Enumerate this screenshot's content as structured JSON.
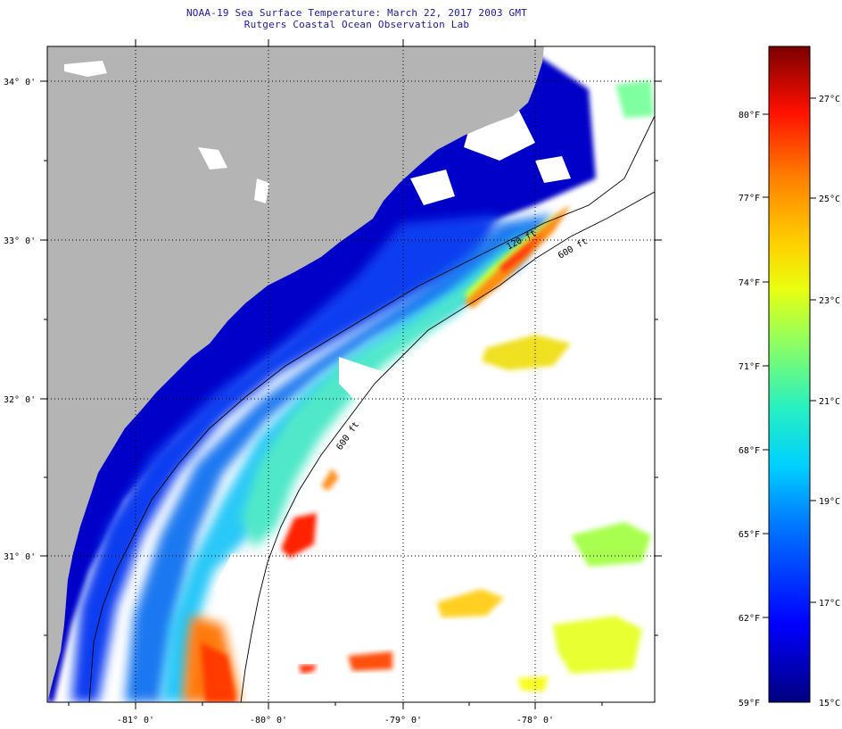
{
  "title": {
    "line1": "NOAA-19 Sea Surface Temperature:  March 22, 2017 2003 GMT",
    "line2": "Rutgers Coastal Ocean Observation Lab"
  },
  "map": {
    "lat_labels": [
      "34° 0'",
      "33° 0'",
      "32° 0'",
      "31° 0'"
    ],
    "lon_labels": [
      "-81° 0'",
      "-80° 0'",
      "-79° 0'",
      "-78° 0'"
    ],
    "isobath_labels": [
      "120 ft",
      "600 ft",
      "600 ft"
    ],
    "colors": {
      "land": "#b4b4b4",
      "ocean_no_data": "#ffffff",
      "border": "#000000"
    }
  },
  "colorbar": {
    "fahrenheit_labels": [
      "80°F",
      "77°F",
      "74°F",
      "71°F",
      "68°F",
      "65°F",
      "62°F",
      "59°F"
    ],
    "celsius_labels": [
      "27°C",
      "25°C",
      "23°C",
      "21°C",
      "19°C",
      "17°C",
      "15°C"
    ],
    "range_celsius": [
      15,
      28
    ],
    "range_fahrenheit": [
      59,
      82.4
    ]
  }
}
